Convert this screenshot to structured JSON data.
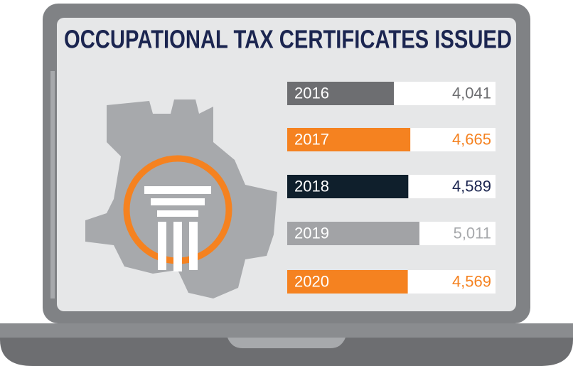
{
  "chart_data": {
    "type": "bar",
    "orientation": "horizontal",
    "title": "OCCUPATIONAL TAX CERTIFICATES ISSUED",
    "categories": [
      "2016",
      "2017",
      "2018",
      "2019",
      "2020"
    ],
    "values": [
      4041,
      4665,
      4589,
      5011,
      4569
    ],
    "value_labels": [
      "4,041",
      "4,665",
      "4,589",
      "5,011",
      "4,569"
    ],
    "colors": [
      "#6d6e71",
      "#f58220",
      "#0f1f2c",
      "#a2a3a6",
      "#f58220"
    ],
    "label_colors": [
      "#6d6e71",
      "#f58220",
      "#1b2550",
      "#a7a9ac",
      "#f58220"
    ]
  }
}
